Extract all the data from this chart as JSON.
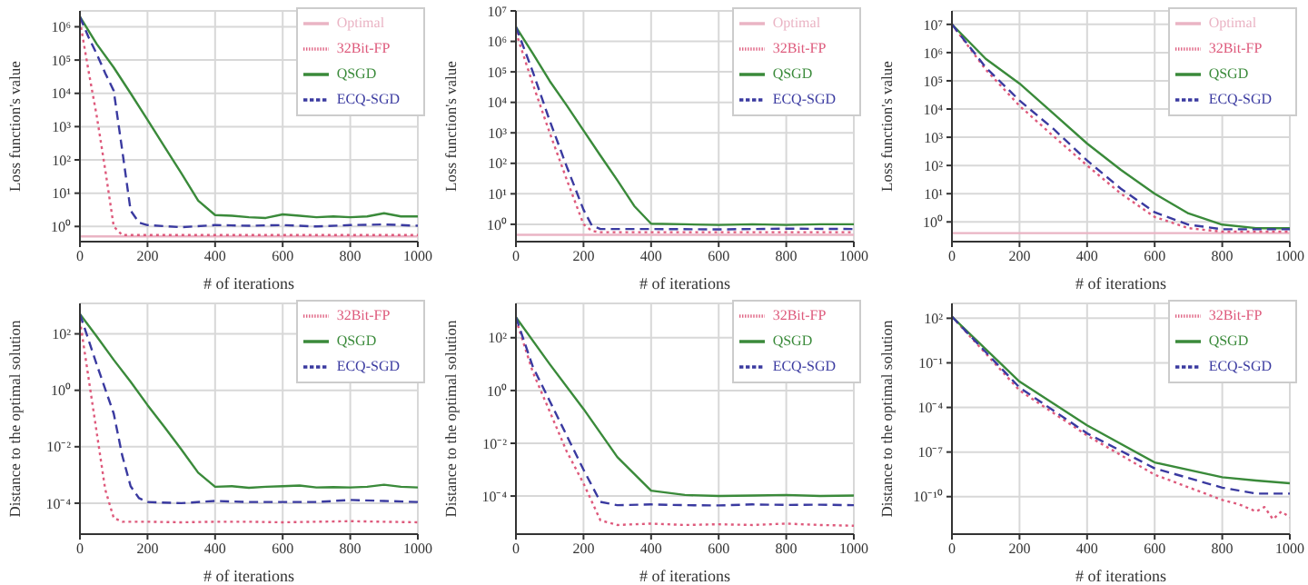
{
  "chart_data": [
    {
      "type": "line",
      "xlabel": "# of iterations",
      "ylabel": "Loss function's value",
      "xlim": [
        0,
        1000
      ],
      "xticks": [
        0,
        200,
        400,
        600,
        800,
        1000
      ],
      "ylim": [
        0.35,
        3000000
      ],
      "yticks": [
        {
          "value": 1,
          "label": "10⁰"
        },
        {
          "value": 10,
          "label": "10¹"
        },
        {
          "value": 100,
          "label": "10²"
        },
        {
          "value": 1000,
          "label": "10³"
        },
        {
          "value": 10000,
          "label": "10⁴"
        },
        {
          "value": 100000,
          "label": "10⁵"
        },
        {
          "value": 1000000,
          "label": "10⁶"
        }
      ],
      "log": "y",
      "grid": true,
      "legend": "top right",
      "marker": "none",
      "series": [
        {
          "name": "Optimal",
          "color": "#eab4c4",
          "line_style": "solid",
          "x": [
            0,
            1000
          ],
          "values": [
            0.5,
            0.5
          ]
        },
        {
          "name": "32Bit-FP",
          "color": "#de5a7c",
          "line_style": "dotted",
          "x": [
            0,
            25,
            50,
            75,
            100,
            125,
            200,
            300,
            400,
            500,
            600,
            700,
            800,
            900,
            1000
          ],
          "values": [
            1500000,
            50000,
            2000,
            50,
            1,
            0.55,
            0.55,
            0.55,
            0.55,
            0.55,
            0.55,
            0.55,
            0.55,
            0.55,
            0.55
          ]
        },
        {
          "name": "QSGD",
          "color": "#3a8a3a",
          "line_style": "solid",
          "x": [
            0,
            50,
            100,
            150,
            200,
            250,
            300,
            350,
            400,
            450,
            500,
            550,
            600,
            650,
            700,
            750,
            800,
            850,
            900,
            950,
            1000
          ],
          "values": [
            2000000,
            300000,
            60000,
            10000,
            1600,
            250,
            40,
            6,
            2.2,
            2.1,
            1.9,
            1.8,
            2.3,
            2.1,
            1.9,
            2,
            1.9,
            2,
            2.5,
            2,
            2
          ]
        },
        {
          "name": "ECQ-SGD",
          "color": "#3a3aa0",
          "line_style": "dashed",
          "x": [
            0,
            25,
            50,
            75,
            100,
            125,
            150,
            175,
            200,
            300,
            400,
            500,
            600,
            700,
            800,
            900,
            1000
          ],
          "values": [
            2000000,
            500000,
            150000,
            40000,
            12000,
            200,
            3,
            1.3,
            1.1,
            0.95,
            1.1,
            1.05,
            1.1,
            1,
            1.1,
            1.15,
            1.05
          ]
        }
      ]
    },
    {
      "type": "line",
      "xlabel": "# of iterations",
      "ylabel": "Loss function's value",
      "xlim": [
        0,
        1000
      ],
      "xticks": [
        0,
        200,
        400,
        600,
        800,
        1000
      ],
      "ylim": [
        0.27,
        10000000
      ],
      "yticks": [
        {
          "value": 1,
          "label": "10⁰"
        },
        {
          "value": 10,
          "label": "10¹"
        },
        {
          "value": 100,
          "label": "10²"
        },
        {
          "value": 1000,
          "label": "10³"
        },
        {
          "value": 10000,
          "label": "10⁴"
        },
        {
          "value": 100000,
          "label": "10⁵"
        },
        {
          "value": 1000000,
          "label": "10⁶"
        },
        {
          "value": 10000000,
          "label": "10⁷"
        }
      ],
      "log": "y",
      "grid": true,
      "legend": "top right",
      "marker": "none",
      "series": [
        {
          "name": "Optimal",
          "color": "#eab4c4",
          "line_style": "solid",
          "x": [
            0,
            1000
          ],
          "values": [
            0.45,
            0.45
          ]
        },
        {
          "name": "32Bit-FP",
          "color": "#de5a7c",
          "line_style": "dotted",
          "x": [
            0,
            50,
            100,
            150,
            200,
            225,
            250,
            400,
            600,
            800,
            1000
          ],
          "values": [
            2000000,
            40000,
            1000,
            30,
            1,
            0.6,
            0.55,
            0.55,
            0.55,
            0.55,
            0.55
          ]
        },
        {
          "name": "QSGD",
          "color": "#3a8a3a",
          "line_style": "solid",
          "x": [
            0,
            50,
            100,
            150,
            200,
            250,
            300,
            350,
            400,
            500,
            600,
            700,
            800,
            900,
            1000
          ],
          "values": [
            3000000,
            400000,
            50000,
            8000,
            1200,
            180,
            28,
            4,
            1.05,
            1,
            0.95,
            1,
            0.95,
            1,
            1
          ]
        },
        {
          "name": "ECQ-SGD",
          "color": "#3a3aa0",
          "line_style": "dashed",
          "x": [
            0,
            50,
            100,
            150,
            200,
            225,
            250,
            400,
            600,
            800,
            1000
          ],
          "values": [
            3000000,
            100000,
            2500,
            80,
            3,
            0.9,
            0.7,
            0.7,
            0.68,
            0.72,
            0.7
          ]
        }
      ]
    },
    {
      "type": "line",
      "xlabel": "# of iterations",
      "ylabel": "Loss function's value",
      "xlim": [
        0,
        1000
      ],
      "xticks": [
        0,
        200,
        400,
        600,
        800,
        1000
      ],
      "ylim": [
        0.2,
        30000000
      ],
      "yticks": [
        {
          "value": 1,
          "label": "10⁰"
        },
        {
          "value": 10,
          "label": "10¹"
        },
        {
          "value": 100,
          "label": "10²"
        },
        {
          "value": 1000,
          "label": "10³"
        },
        {
          "value": 10000,
          "label": "10⁴"
        },
        {
          "value": 100000,
          "label": "10⁵"
        },
        {
          "value": 1000000,
          "label": "10⁶"
        },
        {
          "value": 10000000,
          "label": "10⁷"
        }
      ],
      "log": "y",
      "grid": true,
      "legend": "top right",
      "marker": "none",
      "series": [
        {
          "name": "Optimal",
          "color": "#eab4c4",
          "line_style": "solid",
          "x": [
            0,
            1000
          ],
          "values": [
            0.4,
            0.4
          ]
        },
        {
          "name": "32Bit-FP",
          "color": "#de5a7c",
          "line_style": "dotted",
          "x": [
            0,
            100,
            200,
            300,
            400,
            500,
            600,
            700,
            800,
            900,
            1000
          ],
          "values": [
            10000000,
            250000,
            13000,
            1100,
            100,
            10,
            1.5,
            0.6,
            0.45,
            0.45,
            0.45
          ]
        },
        {
          "name": "QSGD",
          "color": "#3a8a3a",
          "line_style": "solid",
          "x": [
            0,
            100,
            200,
            300,
            400,
            500,
            600,
            700,
            800,
            900,
            1000
          ],
          "values": [
            10000000,
            600000,
            80000,
            7000,
            600,
            70,
            10,
            2,
            0.8,
            0.6,
            0.6
          ]
        },
        {
          "name": "ECQ-SGD",
          "color": "#3a3aa0",
          "line_style": "dashed",
          "x": [
            0,
            100,
            200,
            300,
            400,
            500,
            600,
            700,
            800,
            900,
            1000
          ],
          "values": [
            10000000,
            300000,
            20000,
            2000,
            150,
            15,
            2.2,
            0.8,
            0.55,
            0.55,
            0.55
          ]
        }
      ]
    },
    {
      "type": "line",
      "xlabel": "# of iterations",
      "ylabel": "Distance to the optimal solution",
      "xlim": [
        0,
        1000
      ],
      "xticks": [
        0,
        200,
        400,
        600,
        800,
        1000
      ],
      "ylim": [
        8e-06,
        1200
      ],
      "yticks": [
        {
          "value": 0.0001,
          "label": "10⁻⁴"
        },
        {
          "value": 0.01,
          "label": "10⁻²"
        },
        {
          "value": 1,
          "label": "10⁰"
        },
        {
          "value": 100,
          "label": "10²"
        }
      ],
      "log": "y",
      "grid": true,
      "legend": "top right",
      "marker": "none",
      "series": [
        {
          "name": "32Bit-FP",
          "color": "#de5a7c",
          "line_style": "dotted",
          "x": [
            0,
            25,
            50,
            75,
            100,
            125,
            200,
            300,
            400,
            500,
            600,
            700,
            800,
            900,
            1000
          ],
          "values": [
            300,
            3,
            0.03,
            0.0003,
            3e-05,
            2.2e-05,
            2.2e-05,
            2.1e-05,
            2.2e-05,
            2.2e-05,
            2.1e-05,
            2.2e-05,
            2.3e-05,
            2.2e-05,
            2.1e-05
          ]
        },
        {
          "name": "QSGD",
          "color": "#3a8a3a",
          "line_style": "solid",
          "x": [
            0,
            50,
            100,
            150,
            200,
            250,
            300,
            350,
            400,
            450,
            500,
            550,
            600,
            650,
            700,
            750,
            800,
            850,
            900,
            950,
            1000
          ],
          "values": [
            500,
            80,
            12,
            2,
            0.3,
            0.05,
            0.008,
            0.0012,
            0.00038,
            0.0004,
            0.00035,
            0.00038,
            0.0004,
            0.00042,
            0.00036,
            0.00037,
            0.00036,
            0.00038,
            0.00045,
            0.00038,
            0.00036
          ]
        },
        {
          "name": "ECQ-SGD",
          "color": "#3a3aa0",
          "line_style": "dashed",
          "x": [
            0,
            50,
            100,
            125,
            150,
            175,
            200,
            300,
            400,
            500,
            600,
            700,
            800,
            900,
            1000
          ],
          "values": [
            500,
            8,
            0.15,
            0.005,
            0.0004,
            0.00015,
            0.00011,
            0.0001,
            0.00012,
            0.00011,
            0.00011,
            0.00011,
            0.00013,
            0.00012,
            0.00011
          ]
        }
      ]
    },
    {
      "type": "line",
      "xlabel": "# of iterations",
      "ylabel": "Distance to the optimal solution",
      "xlim": [
        0,
        1000
      ],
      "xticks": [
        0,
        200,
        400,
        600,
        800,
        1000
      ],
      "ylim": [
        3.6e-06,
        2000
      ],
      "yticks": [
        {
          "value": 0.0001,
          "label": "10⁻⁴"
        },
        {
          "value": 0.01,
          "label": "10⁻²"
        },
        {
          "value": 1,
          "label": "10⁰"
        },
        {
          "value": 100,
          "label": "10²"
        }
      ],
      "log": "y",
      "grid": true,
      "legend": "top right",
      "marker": "none",
      "series": [
        {
          "name": "32Bit-FP",
          "color": "#de5a7c",
          "line_style": "dotted",
          "x": [
            0,
            50,
            100,
            150,
            200,
            250,
            300,
            400,
            500,
            600,
            700,
            800,
            900,
            1000
          ],
          "values": [
            500,
            5,
            0.16,
            0.005,
            0.0003,
            1.2e-05,
            8e-06,
            9e-06,
            8e-06,
            8.5e-06,
            8e-06,
            9e-06,
            8e-06,
            7.5e-06
          ]
        },
        {
          "name": "QSGD",
          "color": "#3a8a3a",
          "line_style": "solid",
          "x": [
            0,
            100,
            200,
            300,
            400,
            500,
            600,
            700,
            800,
            900,
            1000
          ],
          "values": [
            600,
            10,
            0.2,
            0.003,
            0.00016,
            0.00011,
            0.0001,
            0.000105,
            0.00011,
            0.0001,
            0.000105
          ]
        },
        {
          "name": "ECQ-SGD",
          "color": "#3a3aa0",
          "line_style": "dashed",
          "x": [
            0,
            50,
            100,
            150,
            200,
            250,
            300,
            400,
            500,
            600,
            700,
            800,
            900,
            1000
          ],
          "values": [
            600,
            8,
            0.4,
            0.02,
            0.001,
            6e-05,
            4.5e-05,
            4.8e-05,
            4.5e-05,
            4.4e-05,
            4.8e-05,
            4.6e-05,
            4.7e-05,
            4.5e-05
          ]
        }
      ]
    },
    {
      "type": "line",
      "xlabel": "# of iterations",
      "ylabel": "Distance to the optimal solution",
      "xlim": [
        0,
        1000
      ],
      "xticks": [
        0,
        200,
        400,
        600,
        800,
        1000
      ],
      "ylim": [
        3e-13,
        1000
      ],
      "yticks": [
        {
          "value": 1e-10,
          "label": "10⁻¹⁰"
        },
        {
          "value": 1e-07,
          "label": "10⁻⁷"
        },
        {
          "value": 0.0001,
          "label": "10⁻⁴"
        },
        {
          "value": 0.1,
          "label": "10⁻¹"
        },
        {
          "value": 100,
          "label": "10²"
        }
      ],
      "log": "y",
      "grid": true,
      "legend": "top right",
      "marker": "none",
      "series": [
        {
          "name": "32Bit-FP",
          "color": "#de5a7c",
          "line_style": "dotted",
          "x": [
            0,
            200,
            400,
            600,
            800,
            850,
            900,
            925,
            950,
            975,
            1000
          ],
          "values": [
            130,
            0.0014,
            1.3e-06,
            3e-09,
            6e-11,
            3e-11,
            1e-11,
            2e-11,
            3e-12,
            1e-11,
            4e-12
          ]
        },
        {
          "name": "QSGD",
          "color": "#3a8a3a",
          "line_style": "solid",
          "x": [
            0,
            200,
            400,
            600,
            800,
            900,
            1000
          ],
          "values": [
            130,
            0.0055,
            6.3e-06,
            2e-08,
            2e-09,
            1.2e-09,
            8e-10
          ]
        },
        {
          "name": "ECQ-SGD",
          "color": "#3a3aa0",
          "line_style": "dashed",
          "x": [
            0,
            200,
            400,
            600,
            800,
            900,
            1000
          ],
          "values": [
            130,
            0.0022,
            1.8e-06,
            8e-09,
            4e-10,
            1.6e-10,
            1.6e-10
          ]
        }
      ]
    }
  ]
}
